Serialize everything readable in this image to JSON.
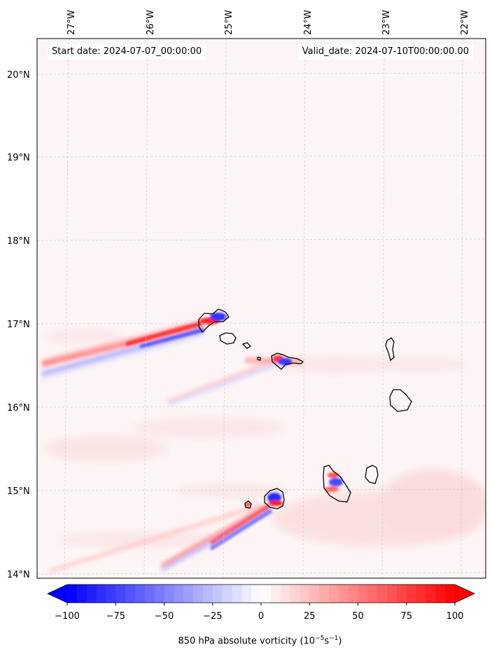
{
  "header": {
    "start_date": "Start date: 2024-07-07_00:00:00",
    "valid_date": "Valid_date: 2024-07-10T00:00:00.00"
  },
  "map": {
    "longitude_labels": [
      "27°W",
      "26°W",
      "25°W",
      "24°W",
      "23°W",
      "22°W"
    ],
    "latitude_labels": [
      "20°N",
      "19°N",
      "18°N",
      "17°N",
      "16°N",
      "15°N",
      "14°N"
    ],
    "extent": {
      "lon_min": -27.4,
      "lon_max": -21.9,
      "lat_min": 13.95,
      "lat_max": 20.45
    },
    "background_color": "#fdf5f5",
    "coastline_color": "#000000"
  },
  "colorbar": {
    "ticks": [
      "−100",
      "−75",
      "−50",
      "−25",
      "0",
      "25",
      "50",
      "75",
      "100"
    ],
    "min": -100,
    "max": 100,
    "step": 5,
    "extend": "both",
    "cmap": "bwr",
    "label_prefix": "850 hPa absolute vorticity (10",
    "label_exp1": "−5",
    "label_mid": "s",
    "label_exp2": "−1",
    "label_suffix": ")"
  }
}
